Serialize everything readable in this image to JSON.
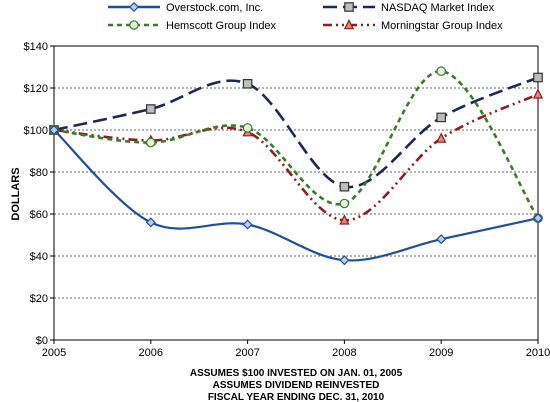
{
  "chart_data": {
    "type": "line",
    "x": [
      "2005",
      "2006",
      "2007",
      "2008",
      "2009",
      "2010"
    ],
    "series": [
      {
        "name": "Overstock.com, Inc.",
        "values": [
          100,
          56,
          55,
          38,
          48,
          58
        ],
        "color": "#1f4e9e",
        "dash": "solid",
        "marker": "diamond"
      },
      {
        "name": "NASDAQ Market Index",
        "values": [
          100,
          110,
          122,
          73,
          106,
          125
        ],
        "color": "#1b2a55",
        "dash": "long-dash",
        "marker": "square"
      },
      {
        "name": "Hemscott Group Index",
        "values": [
          100,
          94,
          101,
          65,
          128,
          58
        ],
        "color": "#3a7a2a",
        "dash": "short-dash",
        "marker": "circle"
      },
      {
        "name": "Morningstar Group Index",
        "values": [
          100,
          95,
          99,
          57,
          96,
          117
        ],
        "color": "#8b2020",
        "dash": "dash-dot-dot",
        "marker": "triangle"
      }
    ],
    "ylabel": "DOLLARS",
    "ylim": [
      0,
      140
    ],
    "yticks": [
      "$0",
      "$20",
      "$40",
      "$60",
      "$80",
      "$100",
      "$120",
      "$140"
    ],
    "grid": true,
    "legend": "top",
    "footnotes": [
      "ASSUMES $100 INVESTED ON JAN. 01, 2005",
      "ASSUMES DIVIDEND REINVESTED",
      "FISCAL YEAR ENDING DEC. 31, 2010"
    ]
  }
}
